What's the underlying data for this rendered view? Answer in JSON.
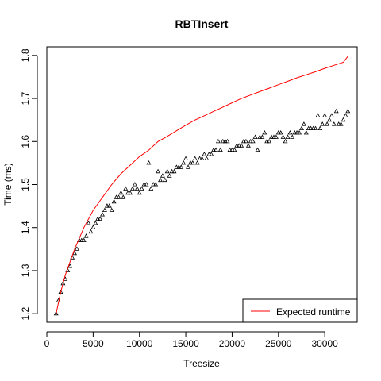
{
  "chart_data": {
    "type": "scatter",
    "title": "RBTInsert",
    "xlabel": "Treesize",
    "ylabel": "Time (ms)",
    "xlim": [
      0,
      33500
    ],
    "ylim": [
      1.18,
      1.82
    ],
    "x_ticks": [
      0,
      5000,
      10000,
      15000,
      20000,
      25000,
      30000
    ],
    "x_tick_labels": [
      "0",
      "5000",
      "10000",
      "15000",
      "20000",
      "25000",
      "30000"
    ],
    "y_ticks": [
      1.2,
      1.3,
      1.4,
      1.5,
      1.6,
      1.7,
      1.8
    ],
    "y_tick_labels": [
      "1.2",
      "1.3",
      "1.4",
      "1.5",
      "1.6",
      "1.7",
      "1.8"
    ],
    "grid": false,
    "legend": {
      "position": "bottom-right",
      "entries": [
        {
          "label": "Expected runtime",
          "color": "#ff0000",
          "style": "line"
        }
      ]
    },
    "series": [
      {
        "marker": "triangle",
        "color": "#000000",
        "x": [
          1000,
          1250,
          1500,
          1750,
          2000,
          2250,
          2500,
          2750,
          3000,
          3250,
          3500,
          3750,
          4000,
          4250,
          4500,
          4750,
          5000,
          5250,
          5500,
          5750,
          6000,
          6250,
          6500,
          6750,
          7000,
          7250,
          7500,
          7750,
          8000,
          8250,
          8500,
          8750,
          9000,
          9250,
          9500,
          9750,
          10000,
          10250,
          10500,
          10750,
          11000,
          11250,
          11500,
          11750,
          12000,
          12250,
          12500,
          12750,
          13000,
          13250,
          13500,
          13750,
          14000,
          14250,
          14500,
          14750,
          15000,
          15250,
          15500,
          15750,
          16000,
          16250,
          16500,
          16750,
          17000,
          17250,
          17500,
          17750,
          18000,
          18250,
          18500,
          18750,
          19000,
          19250,
          19500,
          19750,
          20000,
          20250,
          20500,
          20750,
          21000,
          21250,
          21500,
          21750,
          22000,
          22250,
          22500,
          22750,
          23000,
          23250,
          23500,
          23750,
          24000,
          24250,
          24500,
          24750,
          25000,
          25250,
          25500,
          25750,
          26000,
          26250,
          26500,
          26750,
          27000,
          27250,
          27500,
          27750,
          28000,
          28250,
          28500,
          28750,
          29000,
          29250,
          29500,
          29750,
          30000,
          30250,
          30500,
          30750,
          31000,
          31250,
          31500,
          31750,
          32000,
          32250,
          32500
        ],
        "y": [
          1.2,
          1.23,
          1.25,
          1.27,
          1.28,
          1.3,
          1.31,
          1.33,
          1.34,
          1.35,
          1.37,
          1.37,
          1.37,
          1.38,
          1.41,
          1.39,
          1.4,
          1.41,
          1.42,
          1.42,
          1.43,
          1.44,
          1.45,
          1.45,
          1.44,
          1.46,
          1.47,
          1.47,
          1.48,
          1.47,
          1.49,
          1.48,
          1.48,
          1.49,
          1.5,
          1.49,
          1.48,
          1.49,
          1.5,
          1.5,
          1.55,
          1.49,
          1.5,
          1.5,
          1.53,
          1.51,
          1.52,
          1.51,
          1.53,
          1.52,
          1.53,
          1.53,
          1.54,
          1.54,
          1.54,
          1.55,
          1.56,
          1.54,
          1.55,
          1.55,
          1.56,
          1.55,
          1.56,
          1.56,
          1.57,
          1.56,
          1.57,
          1.57,
          1.58,
          1.58,
          1.6,
          1.58,
          1.6,
          1.6,
          1.6,
          1.58,
          1.58,
          1.58,
          1.59,
          1.59,
          1.59,
          1.6,
          1.6,
          1.59,
          1.6,
          1.6,
          1.61,
          1.58,
          1.61,
          1.61,
          1.62,
          1.6,
          1.6,
          1.61,
          1.61,
          1.61,
          1.62,
          1.62,
          1.61,
          1.6,
          1.61,
          1.62,
          1.61,
          1.62,
          1.62,
          1.62,
          1.63,
          1.64,
          1.62,
          1.63,
          1.63,
          1.63,
          1.63,
          1.66,
          1.63,
          1.64,
          1.66,
          1.64,
          1.65,
          1.66,
          1.64,
          1.67,
          1.64,
          1.64,
          1.65,
          1.66,
          1.67
        ]
      },
      {
        "name": "Expected runtime",
        "type": "line",
        "color": "#ff0000",
        "x": [
          1000,
          1500,
          2000,
          2500,
          3000,
          3500,
          4000,
          5000,
          6000,
          7000,
          8000,
          9000,
          10000,
          11000,
          12000,
          13000,
          14000,
          15000,
          16000,
          17000,
          18000,
          19000,
          20000,
          21000,
          22000,
          23000,
          24000,
          25000,
          26000,
          27000,
          28000,
          29000,
          30000,
          31000,
          32000,
          32500
        ],
        "y": [
          1.2,
          1.25,
          1.29,
          1.32,
          1.35,
          1.375,
          1.4,
          1.44,
          1.47,
          1.5,
          1.525,
          1.545,
          1.565,
          1.58,
          1.6,
          1.612,
          1.625,
          1.638,
          1.65,
          1.66,
          1.67,
          1.68,
          1.69,
          1.7,
          1.708,
          1.716,
          1.724,
          1.732,
          1.74,
          1.748,
          1.755,
          1.762,
          1.77,
          1.777,
          1.784,
          1.798
        ]
      }
    ]
  }
}
